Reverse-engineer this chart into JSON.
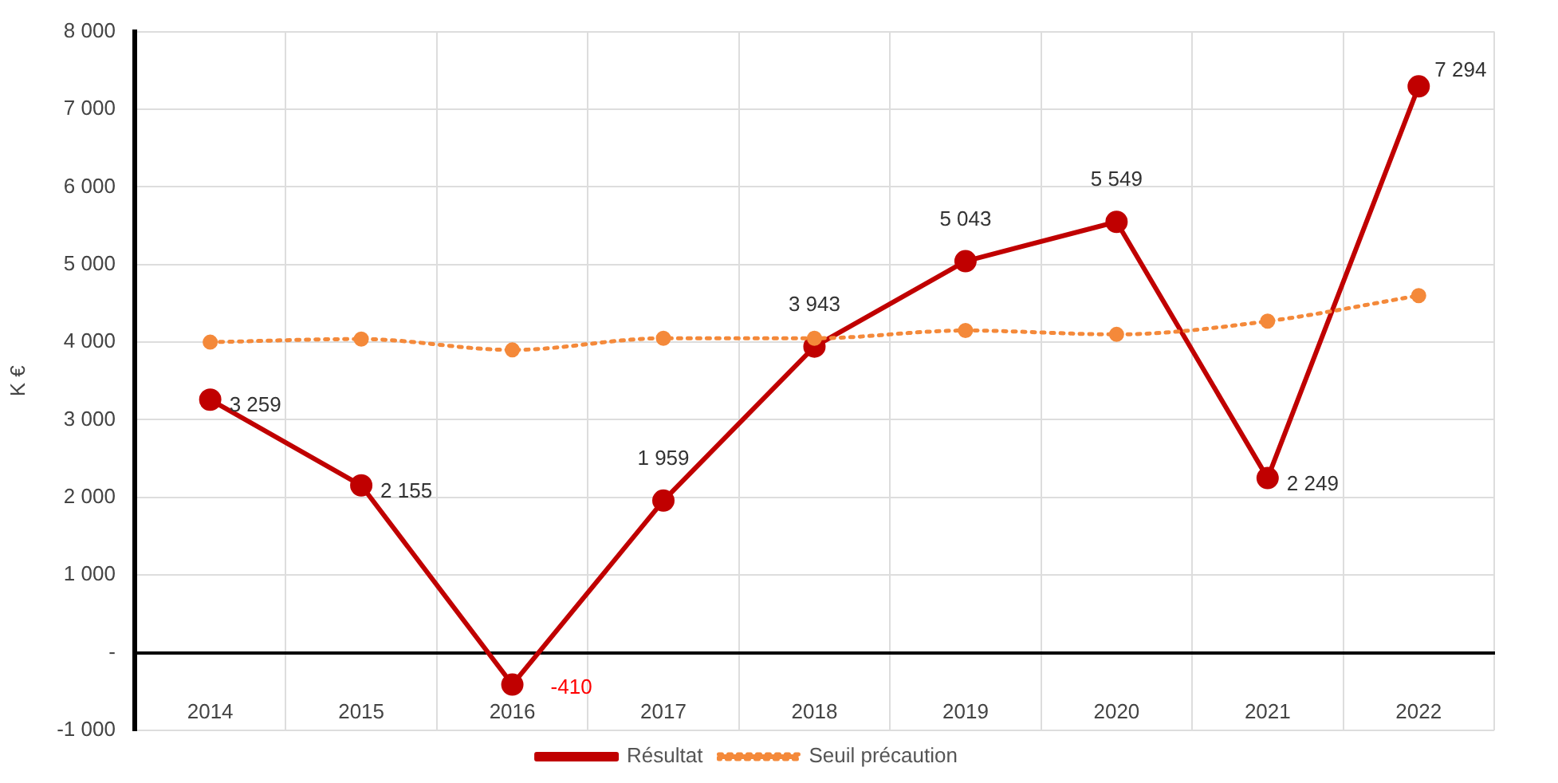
{
  "chart_data": {
    "type": "line",
    "ylabel": "K €",
    "categories": [
      "2014",
      "2015",
      "2016",
      "2017",
      "2018",
      "2019",
      "2020",
      "2021",
      "2022"
    ],
    "series": [
      {
        "name": "Résultat",
        "color": "#c00000",
        "values": [
          3259,
          2155,
          -410,
          1959,
          3943,
          5043,
          5549,
          2249,
          7294
        ],
        "value_labels": [
          "3 259",
          "2 155",
          "-410",
          "1 959",
          "3 943",
          "5 043",
          "5 549",
          "2 249",
          "7 294"
        ],
        "line_style": "solid",
        "marker": "circle"
      },
      {
        "name": "Seuil précaution",
        "color": "#f4893a",
        "values": [
          4000,
          4040,
          3900,
          4050,
          4050,
          4150,
          4100,
          4270,
          4600
        ],
        "line_style": "dotted",
        "marker": "circle"
      }
    ],
    "ylim": [
      -1000,
      8000
    ],
    "yticks": [
      {
        "value": -1000,
        "label": "-1 000"
      },
      {
        "value": 0,
        "label": "-"
      },
      {
        "value": 1000,
        "label": "1 000"
      },
      {
        "value": 2000,
        "label": "2 000"
      },
      {
        "value": 3000,
        "label": "3 000"
      },
      {
        "value": 4000,
        "label": "4 000"
      },
      {
        "value": 5000,
        "label": "5 000"
      },
      {
        "value": 6000,
        "label": "6 000"
      },
      {
        "value": 7000,
        "label": "7 000"
      },
      {
        "value": 8000,
        "label": "8 000"
      }
    ],
    "grid": true,
    "legend": "bottom"
  }
}
